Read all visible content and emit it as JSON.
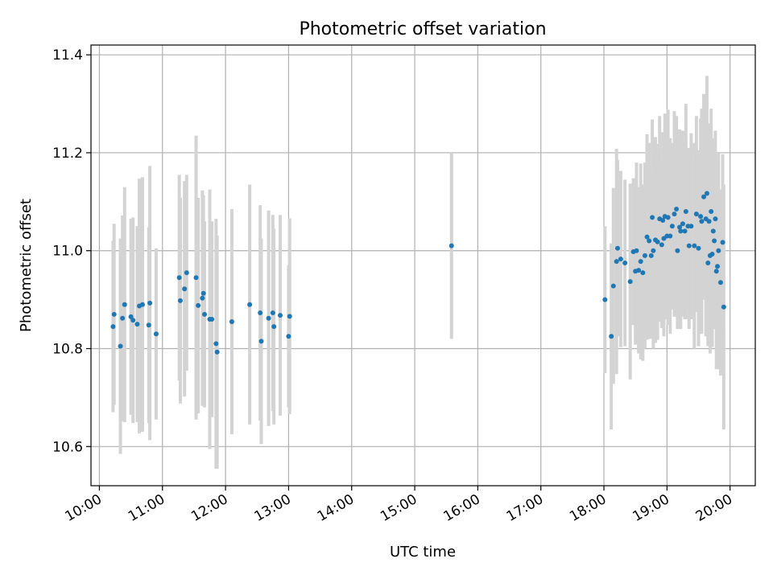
{
  "chart_data": {
    "type": "scatter",
    "title": "Photometric offset variation",
    "xlabel": "UTC time",
    "ylabel": "Photometric offset",
    "xlim": [
      "09:52",
      "20:24"
    ],
    "ylim": [
      10.52,
      11.42
    ],
    "x_ticks": [
      "10:00",
      "11:00",
      "12:00",
      "13:00",
      "14:00",
      "15:00",
      "16:00",
      "17:00",
      "18:00",
      "19:00",
      "20:00"
    ],
    "y_ticks": [
      10.6,
      10.8,
      11.0,
      11.2,
      11.4
    ],
    "y_tick_labels": [
      "10.6",
      "10.8",
      "11.0",
      "11.2",
      "11.4"
    ],
    "grid": true,
    "colors": {
      "points": "#1f77b4",
      "errorbars": "#d3d3d3",
      "grid": "#b0b0b0"
    },
    "series": [
      {
        "points": [
          {
            "x": "10:13",
            "y": 10.845,
            "err": 0.175
          },
          {
            "x": "10:14",
            "y": 10.87,
            "err": 0.185
          },
          {
            "x": "10:20",
            "y": 10.805,
            "err": 0.22
          },
          {
            "x": "10:22",
            "y": 10.862,
            "err": 0.21
          },
          {
            "x": "10:24",
            "y": 10.89,
            "err": 0.24
          },
          {
            "x": "10:30",
            "y": 10.865,
            "err": 0.2
          },
          {
            "x": "10:32",
            "y": 10.858,
            "err": 0.21
          },
          {
            "x": "10:36",
            "y": 10.85,
            "err": 0.2
          },
          {
            "x": "10:38",
            "y": 10.887,
            "err": 0.26
          },
          {
            "x": "10:41",
            "y": 10.89,
            "err": 0.26
          },
          {
            "x": "10:47",
            "y": 10.848,
            "err": 0.2
          },
          {
            "x": "10:48",
            "y": 10.893,
            "err": 0.28
          },
          {
            "x": "10:54",
            "y": 10.83,
            "err": 0.175
          },
          {
            "x": "11:16",
            "y": 10.945,
            "err": 0.21
          },
          {
            "x": "11:17",
            "y": 10.898,
            "err": 0.21
          },
          {
            "x": "11:21",
            "y": 10.922,
            "err": 0.22
          },
          {
            "x": "11:23",
            "y": 10.955,
            "err": 0.2
          },
          {
            "x": "11:32",
            "y": 10.945,
            "err": 0.29
          },
          {
            "x": "11:34",
            "y": 10.888,
            "err": 0.22
          },
          {
            "x": "11:38",
            "y": 10.903,
            "err": 0.22
          },
          {
            "x": "11:39",
            "y": 10.913,
            "err": 0.2
          },
          {
            "x": "11:40",
            "y": 10.87,
            "err": 0.19
          },
          {
            "x": "11:45",
            "y": 10.86,
            "err": 0.265
          },
          {
            "x": "11:47",
            "y": 10.86,
            "err": 0.2
          },
          {
            "x": "11:51",
            "y": 10.81,
            "err": 0.255
          },
          {
            "x": "11:52",
            "y": 10.793,
            "err": 0.238
          },
          {
            "x": "12:06",
            "y": 10.855,
            "err": 0.23
          },
          {
            "x": "12:23",
            "y": 10.89,
            "err": 0.245
          },
          {
            "x": "12:33",
            "y": 10.873,
            "err": 0.22
          },
          {
            "x": "12:34",
            "y": 10.815,
            "err": 0.21
          },
          {
            "x": "12:41",
            "y": 10.862,
            "err": 0.22
          },
          {
            "x": "12:45",
            "y": 10.873,
            "err": 0.2
          },
          {
            "x": "12:46",
            "y": 10.845,
            "err": 0.2
          },
          {
            "x": "12:52",
            "y": 10.868,
            "err": 0.205
          },
          {
            "x": "13:01",
            "y": 10.866,
            "err": 0.2
          },
          {
            "x": "13:00",
            "y": 10.825,
            "err": 0.145
          },
          {
            "x": "15:35",
            "y": 11.01,
            "err": 0.19
          },
          {
            "x": "18:01",
            "y": 10.9,
            "err": 0.15
          },
          {
            "x": "18:07",
            "y": 10.825,
            "err": 0.19
          },
          {
            "x": "18:09",
            "y": 10.928,
            "err": 0.2
          },
          {
            "x": "18:12",
            "y": 10.978,
            "err": 0.23
          },
          {
            "x": "18:13",
            "y": 11.005,
            "err": 0.18
          },
          {
            "x": "18:16",
            "y": 10.983,
            "err": 0.18
          },
          {
            "x": "18:20",
            "y": 10.975,
            "err": 0.17
          },
          {
            "x": "18:25",
            "y": 10.937,
            "err": 0.2
          },
          {
            "x": "18:28",
            "y": 10.998,
            "err": 0.15
          },
          {
            "x": "18:30",
            "y": 10.958,
            "err": 0.15
          },
          {
            "x": "18:31",
            "y": 11.0,
            "err": 0.18
          },
          {
            "x": "18:33",
            "y": 10.96,
            "err": 0.17
          },
          {
            "x": "18:35",
            "y": 10.978,
            "err": 0.2
          },
          {
            "x": "18:37",
            "y": 10.955,
            "err": 0.18
          },
          {
            "x": "18:39",
            "y": 10.99,
            "err": 0.19
          },
          {
            "x": "18:41",
            "y": 11.028,
            "err": 0.21
          },
          {
            "x": "18:43",
            "y": 11.02,
            "err": 0.2
          },
          {
            "x": "18:45",
            "y": 10.99,
            "err": 0.17
          },
          {
            "x": "18:46",
            "y": 11.068,
            "err": 0.2
          },
          {
            "x": "18:47",
            "y": 11.0,
            "err": 0.2
          },
          {
            "x": "18:49",
            "y": 11.022,
            "err": 0.21
          },
          {
            "x": "18:51",
            "y": 11.018,
            "err": 0.2
          },
          {
            "x": "18:53",
            "y": 11.065,
            "err": 0.21
          },
          {
            "x": "18:55",
            "y": 11.012,
            "err": 0.17
          },
          {
            "x": "18:56",
            "y": 11.062,
            "err": 0.18
          },
          {
            "x": "18:57",
            "y": 11.025,
            "err": 0.2
          },
          {
            "x": "18:58",
            "y": 11.07,
            "err": 0.21
          },
          {
            "x": "19:00",
            "y": 11.03,
            "err": 0.17
          },
          {
            "x": "19:01",
            "y": 11.068,
            "err": 0.22
          },
          {
            "x": "19:03",
            "y": 11.03,
            "err": 0.2
          },
          {
            "x": "19:05",
            "y": 11.05,
            "err": 0.17
          },
          {
            "x": "19:07",
            "y": 11.075,
            "err": 0.21
          },
          {
            "x": "19:09",
            "y": 11.085,
            "err": 0.19
          },
          {
            "x": "19:10",
            "y": 11.0,
            "err": 0.16
          },
          {
            "x": "19:12",
            "y": 11.048,
            "err": 0.2
          },
          {
            "x": "19:13",
            "y": 11.04,
            "err": 0.2
          },
          {
            "x": "19:15",
            "y": 11.055,
            "err": 0.19
          },
          {
            "x": "19:17",
            "y": 11.04,
            "err": 0.18
          },
          {
            "x": "19:18",
            "y": 11.08,
            "err": 0.22
          },
          {
            "x": "19:20",
            "y": 11.05,
            "err": 0.16
          },
          {
            "x": "19:21",
            "y": 11.01,
            "err": 0.17
          },
          {
            "x": "19:23",
            "y": 11.05,
            "err": 0.19
          },
          {
            "x": "19:26",
            "y": 11.01,
            "err": 0.21
          },
          {
            "x": "19:28",
            "y": 11.075,
            "err": 0.2
          },
          {
            "x": "19:30",
            "y": 11.005,
            "err": 0.2
          },
          {
            "x": "19:32",
            "y": 11.07,
            "err": 0.2
          },
          {
            "x": "19:33",
            "y": 11.06,
            "err": 0.23
          },
          {
            "x": "19:35",
            "y": 11.11,
            "err": 0.21
          },
          {
            "x": "19:37",
            "y": 11.065,
            "err": 0.24
          },
          {
            "x": "19:38",
            "y": 11.117,
            "err": 0.24
          },
          {
            "x": "19:39",
            "y": 10.975,
            "err": 0.17
          },
          {
            "x": "19:40",
            "y": 11.06,
            "err": 0.2
          },
          {
            "x": "19:41",
            "y": 10.99,
            "err": 0.2
          },
          {
            "x": "19:42",
            "y": 11.08,
            "err": 0.21
          },
          {
            "x": "19:43",
            "y": 10.993,
            "err": 0.19
          },
          {
            "x": "19:44",
            "y": 11.04,
            "err": 0.19
          },
          {
            "x": "19:45",
            "y": 11.02,
            "err": 0.18
          },
          {
            "x": "19:46",
            "y": 11.065,
            "err": 0.18
          },
          {
            "x": "19:47",
            "y": 10.958,
            "err": 0.2
          },
          {
            "x": "19:48",
            "y": 10.968,
            "err": 0.21
          },
          {
            "x": "19:49",
            "y": 11.0,
            "err": 0.2
          },
          {
            "x": "19:51",
            "y": 10.935,
            "err": 0.19
          },
          {
            "x": "19:53",
            "y": 11.017,
            "err": 0.18
          },
          {
            "x": "19:54",
            "y": 10.885,
            "err": 0.25
          }
        ]
      }
    ]
  }
}
